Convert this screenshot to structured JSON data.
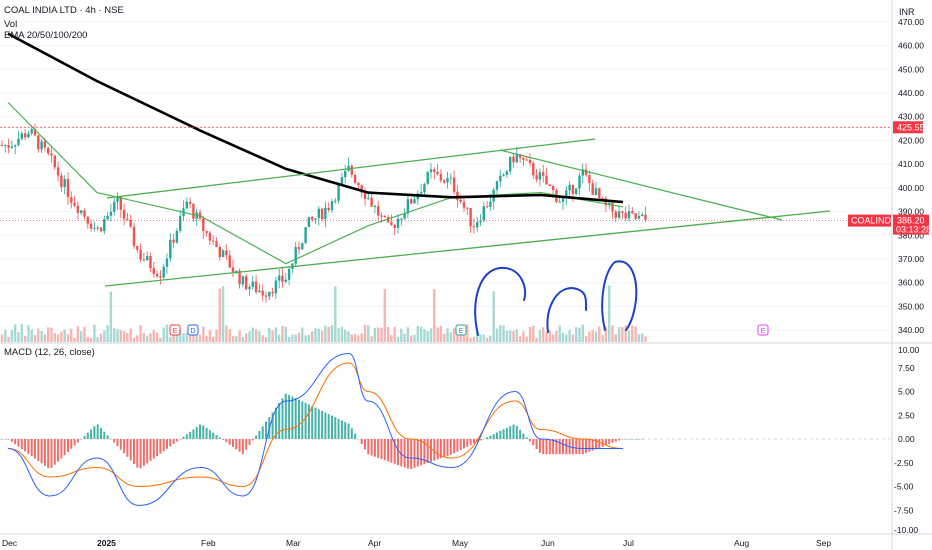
{
  "symbol": {
    "name": "COAL INDIA LTD",
    "timeframe": "4h",
    "exchange": "NSE",
    "full": "COAL INDIA LTD · 4h · NSE"
  },
  "legend": {
    "vol": "Vol",
    "ema": "EMA 20/50/100/200",
    "macd": "MACD (12, 26, close)"
  },
  "currency": "INR",
  "price_tags": {
    "resistance": "425.55",
    "ticker": "COALINDIA",
    "last": "386.20",
    "countdown": "03:13:28"
  },
  "colors": {
    "up": "#26a69a",
    "down": "#ef5350",
    "ema_fast": "#4caf50",
    "ema_slow": "#000000",
    "trend": "#4caf50",
    "annotation": "#1e40c8",
    "macd": "#2962ff",
    "signal": "#ff6d00",
    "resistance": "#f23645"
  },
  "chart_data": [
    {
      "type": "candlestick",
      "title": "COAL INDIA LTD · 4h · NSE",
      "ylim": [
        335,
        475
      ],
      "y_ticks": [
        "470.00",
        "460.00",
        "450.00",
        "440.00",
        "430.00",
        "420.00",
        "410.00",
        "400.00",
        "390.00",
        "380.00",
        "370.00",
        "360.00",
        "350.00",
        "340.00"
      ],
      "x_ticks": [
        "Dec",
        "2025",
        "Feb",
        "Mar",
        "Apr",
        "May",
        "Jun",
        "Jul",
        "Aug",
        "Sep"
      ],
      "price_path": [
        [
          "Dec",
          418
        ],
        [
          "Dec +1w",
          424
        ],
        [
          "Dec +2w",
          412
        ],
        [
          "Dec +3w",
          396
        ],
        [
          "2025",
          382
        ],
        [
          "Jan +1w",
          394
        ],
        [
          "Jan +2w",
          372
        ],
        [
          "Jan +3w",
          364
        ],
        [
          "Jan end",
          394
        ],
        [
          "Feb",
          384
        ],
        [
          "Feb +1w",
          372
        ],
        [
          "Feb +2w",
          360
        ],
        [
          "Feb +3w",
          356
        ],
        [
          "Mar",
          362
        ],
        [
          "Mar +1w",
          384
        ],
        [
          "Mar +2w",
          392
        ],
        [
          "Mar +3w",
          408
        ],
        [
          "Apr",
          396
        ],
        [
          "Apr +1w",
          382
        ],
        [
          "Apr +2w",
          394
        ],
        [
          "Apr +3w",
          406
        ],
        [
          "May",
          402
        ],
        [
          "May +1w",
          384
        ],
        [
          "May +2w",
          398
        ],
        [
          "May +3w",
          414
        ],
        [
          "Jun",
          404
        ],
        [
          "Jun +1w",
          394
        ],
        [
          "Jun +2w",
          406
        ],
        [
          "Jun +3w",
          392
        ],
        [
          "Jul",
          388
        ],
        [
          "Jul last",
          386.2
        ]
      ],
      "ema_200": [
        [
          "Dec",
          465
        ],
        [
          "2025",
          445
        ],
        [
          "Feb",
          424
        ],
        [
          "Mar",
          408
        ],
        [
          "Apr",
          398
        ],
        [
          "May",
          396
        ],
        [
          "Jun",
          397
        ],
        [
          "Jul",
          394
        ]
      ],
      "ema_fast": [
        [
          "Dec",
          436
        ],
        [
          "2025",
          398
        ],
        [
          "Feb",
          388
        ],
        [
          "Mar",
          368
        ],
        [
          "Apr",
          384
        ],
        [
          "May",
          396
        ],
        [
          "Jun",
          398
        ],
        [
          "Jul",
          392
        ]
      ],
      "resistance_level": 425.55,
      "last_price": 386.2,
      "trendlines": [
        {
          "from": [
            "Jan",
            360
          ],
          "to": [
            "Aug",
            388
          ]
        },
        {
          "from": [
            "Jan",
            398
          ],
          "to": [
            "Jun",
            421
          ]
        },
        {
          "from": [
            "May",
            417
          ],
          "to": [
            "Aug",
            387
          ]
        }
      ],
      "event_markers": [
        "E",
        "D",
        "E",
        "E"
      ]
    },
    {
      "type": "macd",
      "title": "MACD (12, 26, close)",
      "ylim": [
        -10,
        10
      ],
      "y_ticks": [
        "10.00",
        "7.50",
        "5.00",
        "2.50",
        "0.00",
        "-2.50",
        "-5.00",
        "-7.50",
        "-10.00"
      ],
      "macd_path": [
        [
          "Dec",
          -1
        ],
        [
          "Dec +2w",
          -6
        ],
        [
          "2025",
          -2
        ],
        [
          "Jan +2w",
          -7
        ],
        [
          "Feb",
          -3
        ],
        [
          "Feb +2w",
          -6
        ],
        [
          "Mar",
          4
        ],
        [
          "Mar +3w",
          9
        ],
        [
          "Apr",
          4
        ],
        [
          "Apr +2w",
          -2
        ],
        [
          "May",
          -3
        ],
        [
          "May +3w",
          5
        ],
        [
          "Jun",
          0
        ],
        [
          "Jun +2w",
          -1
        ],
        [
          "Jul",
          -1
        ]
      ],
      "signal_path": [
        [
          "Dec",
          -1
        ],
        [
          "Dec +2w",
          -4
        ],
        [
          "2025",
          -3
        ],
        [
          "Jan +2w",
          -5
        ],
        [
          "Feb",
          -4
        ],
        [
          "Feb +2w",
          -5
        ],
        [
          "Mar",
          1
        ],
        [
          "Mar +3w",
          8
        ],
        [
          "Apr",
          5
        ],
        [
          "Apr +2w",
          0
        ],
        [
          "May",
          -2
        ],
        [
          "May +3w",
          4
        ],
        [
          "Jun",
          1
        ],
        [
          "Jun +2w",
          0
        ],
        [
          "Jul",
          -1
        ]
      ]
    }
  ]
}
